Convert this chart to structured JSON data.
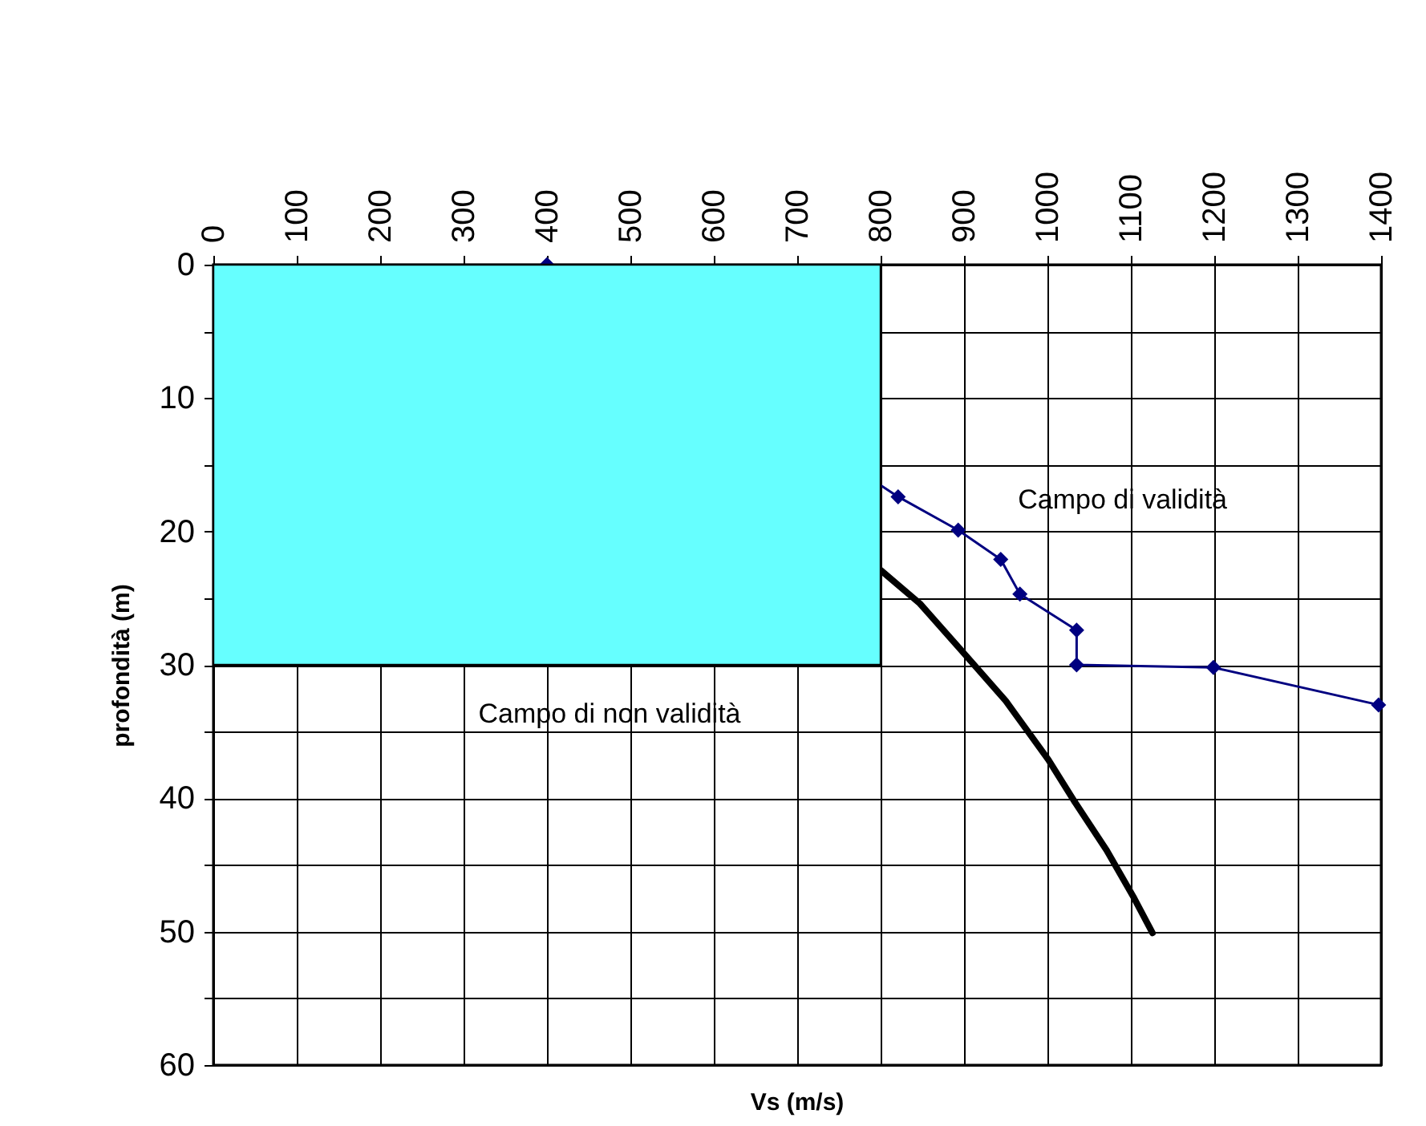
{
  "chart_data": {
    "type": "line",
    "xlabel": "Vs (m/s)",
    "ylabel": "profondità (m)",
    "xlim": [
      0,
      1400
    ],
    "xticks": [
      0,
      100,
      200,
      300,
      400,
      500,
      600,
      700,
      800,
      900,
      1000,
      1100,
      1200,
      1300,
      1400
    ],
    "ylim": [
      60,
      0
    ],
    "yticks": [
      0,
      {
        "value": 5,
        "label": null
      },
      10,
      {
        "value": 15,
        "label": null
      },
      20,
      {
        "value": 25,
        "label": null
      },
      30,
      {
        "value": 35,
        "label": null
      },
      40,
      {
        "value": 45,
        "label": null
      },
      50,
      {
        "value": 55,
        "label": null
      },
      60
    ],
    "grid": true,
    "series": [
      {
        "color": "#000080",
        "marker": "diamond",
        "x": [
          400,
          821,
          893,
          944,
          967,
          1035,
          1035,
          1199,
          1397
        ],
        "values": [
          0,
          17.4,
          19.9,
          22.1,
          24.7,
          27.4,
          30.0,
          30.2,
          33.0
        ]
      },
      {
        "color": "#000000",
        "marker": "none",
        "x": [
          800,
          847,
          898,
          950,
          1001,
          1033,
          1071,
          1104,
          1126
        ],
        "values": [
          22.9,
          25.4,
          29.0,
          32.7,
          37.1,
          40.3,
          43.9,
          47.5,
          50.1
        ]
      },
      {
        "type": "area",
        "color": "#66ffff",
        "x": [
          0,
          800
        ],
        "values": [
          30,
          30
        ]
      }
    ],
    "annotations": [
      "Campo di validità",
      "Campo di non validità"
    ]
  }
}
